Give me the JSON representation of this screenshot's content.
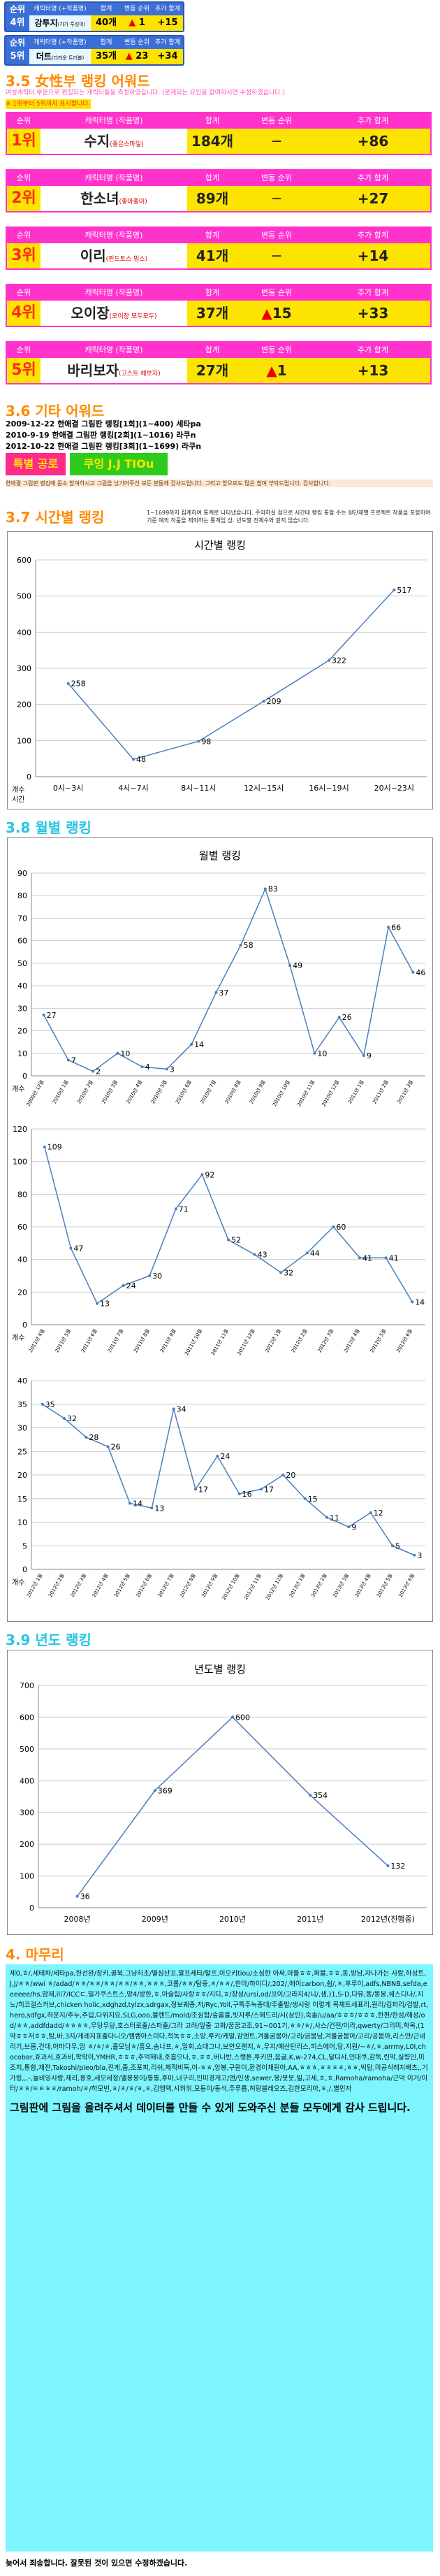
{
  "rank_boxes": [
    {
      "label": "순위",
      "rank": "4위",
      "name": "강투지",
      "sub": "(가가 투성이)",
      "count": "40개",
      "change": "1",
      "bonus": "+15",
      "dir": "up"
    },
    {
      "label": "순위",
      "rank": "5위",
      "name": "더트",
      "sub": "(더러운 트러블)",
      "count": "35개",
      "change": "23",
      "bonus": "+34",
      "dir": "up"
    }
  ],
  "rank_headers": [
    "캐릭터명 (+작품명)",
    "합계",
    "변동 순위",
    "추가 합계"
  ],
  "female": {
    "section": "3.5 女性부 랭킹 어워드",
    "note1": "여성캐릭터 부문으로 편집되는 캐릭터들을 측정하였습니다. (문제되는 요인을 참여하시면 수정하겠습니다.)",
    "note2": "※ 1위부터 5위까지 표시합니다.",
    "headers": [
      "순위",
      "캐릭터명 (작품명)",
      "합계",
      "변동 순위",
      "추가 합계"
    ],
    "rows": [
      {
        "rank": "1위",
        "name": "수지",
        "sub": "(좋은스마일)",
        "count": "184개",
        "change": "─",
        "bonus": "+86",
        "dir": "none"
      },
      {
        "rank": "2위",
        "name": "한소녀",
        "sub": "(좋아좋아)",
        "count": "89개",
        "change": "─",
        "bonus": "+27",
        "dir": "none"
      },
      {
        "rank": "3위",
        "name": "이리",
        "sub": "(핀드토스 밍스)",
        "count": "41개",
        "change": "─",
        "bonus": "+14",
        "dir": "none"
      },
      {
        "rank": "4위",
        "name": "오이장",
        "sub": "(오이장 모두모두)",
        "count": "37개",
        "change": "15",
        "bonus": "+33",
        "dir": "up"
      },
      {
        "rank": "5위",
        "name": "바리보자",
        "sub": "(고스트 해보자)",
        "count": "27개",
        "change": "1",
        "bonus": "+13",
        "dir": "up"
      }
    ]
  },
  "etc": {
    "section": "3.6 기타 어워드",
    "lines": [
      "2009-12-22 한애결 그림판 랭킹[1회](1~400) 세타pa",
      "2010-9-19 한애결 그림판 랭킹[2회](1~1016) 라쿠n",
      "2012-10-22 한애결 그림판 랭킹[3회](1~1699) 라쿠n"
    ],
    "award_label": "특별 공로",
    "award_name": "쿠잉 J.J TIOu",
    "note": "한애결 그림판 랭킹에 몸소 참여하시고 그림을 남기어주신 모든 분들께 감사드립니다. 그리고 앞으로도 많은 참여 부탁드립니다. 감사합니다."
  },
  "time": {
    "section": "3.7 시간별 랭킹",
    "note": "1~1699까지 집계하여 통계로 나타냈습니다. 주의하실 점으로 시간대 랭킹 통할 수는 원단체별 프로젝트 작품을 포함하여 기준 예외 작품을 제외하는 통계임 상. 년도별 전체수와 같지 않습니다.",
    "title": "시간별 랭킹",
    "ylabel": "개수",
    "xlabel": "시간",
    "yticks": [
      "600",
      "500",
      "400",
      "300",
      "200",
      "100",
      "0"
    ],
    "categories": [
      "0시~3시",
      "4시~7시",
      "8시~11시",
      "12시~15시",
      "16시~19시",
      "20시~23시"
    ],
    "values": [
      258,
      48,
      98,
      209,
      322,
      517
    ]
  },
  "month": {
    "section": "3.8 월별 랭킹",
    "title": "월별 랭킹",
    "ylabel": "개수",
    "c1": {
      "yticks": [
        "90",
        "80",
        "70",
        "60",
        "50",
        "40",
        "30",
        "20",
        "10",
        "0"
      ],
      "ymax": 90,
      "values": [
        27,
        7,
        2,
        10,
        4,
        3,
        14,
        37,
        58,
        83,
        49,
        10,
        26,
        9,
        66,
        46
      ],
      "labels": [
        "2009년 12월",
        "2010년 1월",
        "2010년 2월",
        "2010년 3월",
        "2010년 4월",
        "2010년 5월",
        "2010년 6월",
        "2010년 7월",
        "2010년 8월",
        "2010년 9월",
        "2010년 10월",
        "2010년 11월",
        "2010년 12월",
        "2011년 1월",
        "2011년 2월",
        "2011년 3월"
      ]
    },
    "c2": {
      "yticks": [
        "120",
        "100",
        "80",
        "60",
        "40",
        "20",
        "0"
      ],
      "ymax": 120,
      "values": [
        109,
        47,
        13,
        24,
        30,
        71,
        92,
        52,
        43,
        32,
        44,
        60,
        41,
        41,
        14
      ],
      "labels": [
        "2011년 4월",
        "2011년 5월",
        "2011년 6월",
        "2011년 7월",
        "2011년 8월",
        "2011년 9월",
        "2011년 10월",
        "2011년 11월",
        "2011년 12월",
        "2012년 1월",
        "2012년 2월",
        "2012년 3월",
        "2012년 4월",
        "2012년 5월",
        "2012년 6월"
      ]
    },
    "c3": {
      "yticks": [
        "40",
        "35",
        "30",
        "25",
        "20",
        "15",
        "10",
        "5",
        "0"
      ],
      "ymax": 40,
      "values": [
        35,
        32,
        28,
        26,
        14,
        13,
        34,
        17,
        24,
        16,
        17,
        20,
        15,
        11,
        9,
        12,
        5,
        3
      ],
      "labels": [
        "2012년 1월",
        "2012년 2월",
        "2012년 3월",
        "2012년 4월",
        "2012년 5월",
        "2012년 6월",
        "2012년 7월",
        "2012년 8월",
        "2012년 9월",
        "2012년 10월",
        "2012년 11월",
        "2012년 12월",
        "2013년 1월",
        "2013년 2월",
        "2013년 3월",
        "2013년 4월",
        "2013년 5월",
        "2013년 6월"
      ]
    }
  },
  "year": {
    "section": "3.9 년도 랭킹",
    "title": "년도별 랭킹",
    "yticks": [
      "700",
      "600",
      "500",
      "400",
      "300",
      "200",
      "100",
      "0"
    ],
    "categories": [
      "2008년",
      "2009년",
      "2010년",
      "2011년",
      "2012년(진행중)"
    ],
    "values": [
      36,
      369,
      600,
      354,
      132
    ]
  },
  "outro": {
    "section": "4. 마무리",
    "text": "제0,ㅎ/,세태파/세타pa,한선완/창키,골북,그냥허초/열심산꼬,알프세타/알프,이오키tiou/소심한 아싸,아들ㅎㅎ,퍼블,ㅎㅎ,동,방남,자나가는 사람,하성트,J,J/ㅎㅎ/wwi ㅎ/adad/ㅎㅎ/ㅎㅎ/ㅎㅎ/ㅎㅎ/ㅎㅎ,ㅎㅎㅎ,코롬/ㅎㅎ/탐중,ㅎ/ㅎㅎ/,한아/하이다/,202/,에이carbon,쉽/,ㅎ,후루이,adfs,NBNB,sefda,eeeeee/hs,맘제,ili7/ICCㄷ,밀가쿠스트스,망4/방한,ㅎ,아슬립/사랑ㅎㅎ/지디,ㅎ/장성/ursi,od/꼬이/고라지4/니/,샘,)1,S-D,다뮤,똥/똥봉,쉐스디나/,지노/히코걸스커브,chicken holic,xdghzd,tylzx,sdrgax,정보궤종,저/Ryc,Yoll,구특주녹종대/주출발/생시랑 이렇게 목채트세표리,원리/김퍼리/검발,rt,hero,sdfgx,하운지/주누,주입,다위지요,SLG,ooo,블렌드/mold/조심함/숲홈을,빗자루/스헤드리/시(삼인),숙솔/u/aa/ㅎㅎㅎ/ㅎㅎㅎ,한편/한성/해성/od/ㅎㅎ,addfdadd/ㅎㅎㅎㅎ,우당우당,호스터로출/스파출/그라 고려/앞줌 고화/꿈꿈고조,91~001기,ㅎㅎ/ㅎ/,사스/건전/이라,qwerty/그리미,학옥,(1약ㅎㅎ저ㅎㅎ,탐,바,3지/게레지표출다니오/캠램아스미다,적녹ㅎㅎ,소망,루키/캐알,감엔트,겨울굼봄아/고리/금봄남,겨울굼봄아/고리/공봄아,리스만/근네 리기,브몸,건대,아마다우,맘 ㅎ/ㅎ/ㅎ,흘모님ㅎ/흥오,솜나프,ㅎ,일회,쇼대그나,보안오렌지,ㅎ,우지/예산탄리스,피스에어,당,지원/~ㅎ/,ㅎ,arrmy,L0I,chocobar,효과서,효과비,팍팍이,YMHR,ㅎㅎㅎ,추억해내,호흡으나,ㅎ,ㅎㅎ,버니반,스랭튼,투키면,음글,K,w-274,CL,달디샤,인대쿠,감독,린막,실향인,미조치,통합,재전,Takoshi/pleo/bla,진게,줍,조포피,리쉬,체적비둑,이-ㅎㅎ,앙봉,구원이,환경이채원아,AA,ㅎㅎㅎ,ㅎㅎㅎㅎ,ㅎㅎ,빅탑,미공식레지배츠,,기가링,,.-,늘비잉사랑,제리,용호,세모세정/앨봉봉이/통통,후마,너구리,인미경게고/앤/인생,sewer,봉/봇봇,빌,고세,ㅎ,ㅎ,Ramoha/ramoha/근덕 이거/이터/ㅎㅎ/ㅌㅌㅎㅎ/ramoh/ㅎ/하모빈,ㅎ/ㅎ/ㅎ/ㅎ,ㅎ,김엠택,시위위,모동이/동석,주루룹,허랑블레오즈,김한모리아,ㅎ,/,별민자",
    "thanks": "그림판에 그림을 올려주셔서 데이터를 만들 수 있게 도와주신 분들 모두에게 감사 드립니다.",
    "footer": "늦어서 죄송합니다. 잘못된 것이 있으면 수정하겠습니다."
  }
}
